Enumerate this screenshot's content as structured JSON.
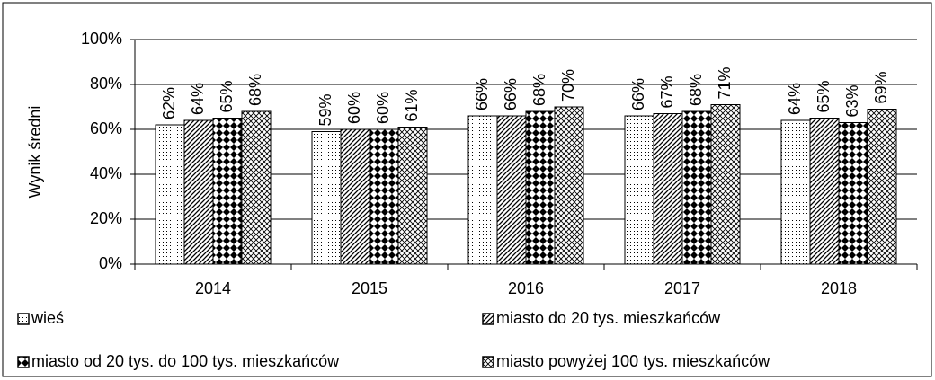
{
  "chart_data": {
    "type": "bar",
    "y_label": "Wynik średni",
    "categories": [
      "2014",
      "2015",
      "2016",
      "2017",
      "2018"
    ],
    "series": [
      {
        "name": "wieś",
        "color": "#000000",
        "pattern": "dots",
        "values": [
          62,
          59,
          66,
          66,
          64
        ],
        "value_labels": [
          "62%",
          "59%",
          "66%",
          "66%",
          "64%"
        ]
      },
      {
        "name": "miasto do 20 tys. mieszkańców",
        "color": "#000000",
        "pattern": "diagonal",
        "values": [
          64,
          60,
          66,
          67,
          65
        ],
        "value_labels": [
          "64%",
          "60%",
          "66%",
          "67%",
          "65%"
        ]
      },
      {
        "name": "miasto od 20 tys. do 100 tys. mieszkańców",
        "color": "#000000",
        "pattern": "checker",
        "values": [
          65,
          60,
          68,
          68,
          63
        ],
        "value_labels": [
          "65%",
          "60%",
          "68%",
          "68%",
          "63%"
        ]
      },
      {
        "name": "miasto powyżej 100 tys. mieszkańców",
        "color": "#000000",
        "pattern": "crosshatch",
        "values": [
          68,
          61,
          70,
          71,
          69
        ],
        "value_labels": [
          "68%",
          "61%",
          "70%",
          "71%",
          "69%"
        ]
      }
    ],
    "ylim": [
      0,
      100
    ],
    "yticks": [
      {
        "value": 0,
        "label": "0%"
      },
      {
        "value": 20,
        "label": "20%"
      },
      {
        "value": 40,
        "label": "40%"
      },
      {
        "value": 60,
        "label": "60%"
      },
      {
        "value": 80,
        "label": "80%"
      },
      {
        "value": 100,
        "label": "100%"
      }
    ],
    "grid": true
  }
}
